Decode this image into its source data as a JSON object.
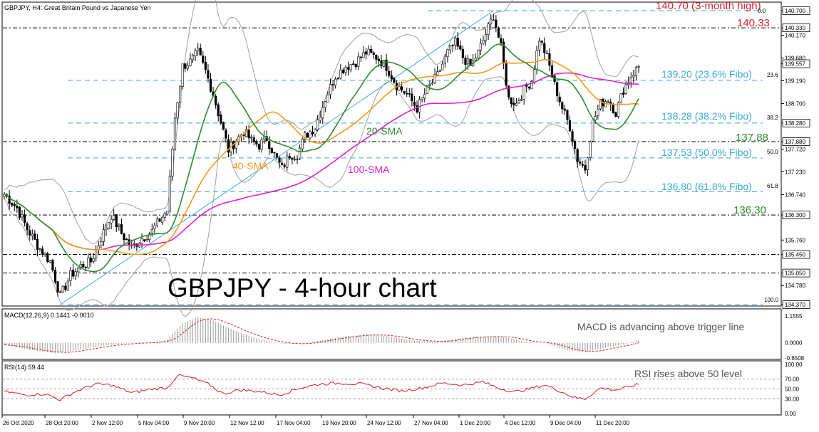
{
  "header": {
    "main_title": "GBPJPY, H4:  Great Britain Pound vs Japanese Yen",
    "macd_title": "MACD(12,26,9) 0.1441 -0.0010",
    "rsi_title": "RSI(14) 59.44"
  },
  "big_title": "GBPJPY - 4-hour chart",
  "colors": {
    "bull": "#ffffff",
    "bear": "#000000",
    "sma20": "#2e8b2e",
    "sma40": "#f59a1c",
    "sma100": "#e020d0",
    "bollinger": "#a0a0a0",
    "fibo": "#3aa9d6",
    "resistance": "#e0202a",
    "support": "#2e8b2e",
    "channel": "#3aa9d6",
    "macd_signal": "#d02020",
    "rsi_line": "#d02020",
    "annotation_text": "#555555"
  },
  "annotations": {
    "high_label": "140.70 (3-month high)",
    "r1_label": "140.33",
    "fibo_236": "139.20 (23.6% Fibo)",
    "fibo_382": "138.28 (38.2% Fibo)",
    "fibo_500": "137.53 (50.0% Fibo)",
    "fibo_618": "136.80 (61.8% Fibo)",
    "s1_label": "137.88",
    "s2_label": "136.30",
    "sma20_label": "20-SMA",
    "sma40_label": "40-SMA",
    "sma100_label": "100-SMA",
    "macd_note": "MACD is advancing above trigger line",
    "rsi_note": "RSI rises above 50 level",
    "fibo_small_236": "23.6",
    "fibo_small_382": "38.2",
    "fibo_small_500": "50.0",
    "fibo_small_618": "61.8",
    "fibo_small_0": "0.0",
    "fibo_small_100": "100.0"
  },
  "chart_data": [
    {
      "type": "candlestick",
      "title": "GBPJPY, H4:  Great Britain Pound vs Japanese Yen",
      "ylim": [
        134.37,
        140.7
      ],
      "y_tick_labels": [
        "140.700",
        "140.330",
        "140.170",
        "139.680",
        "139.557",
        "139.190",
        "138.700",
        "138.280",
        "137.880",
        "137.720",
        "137.230",
        "136.740",
        "136.300",
        "135.760",
        "135.450",
        "135.050",
        "134.780",
        "134.370"
      ],
      "x_tick_labels": [
        "26 Oct 2020",
        "28 Oct 20:00",
        "2 Nov 12:00",
        "5 Nov 04:00",
        "9 Nov 20:00",
        "12 Nov 12:00",
        "17 Nov 04:00",
        "19 Nov 20:00",
        "24 Nov 12:00",
        "27 Nov 04:00",
        "1 Dec 20:00",
        "4 Dec 12:00",
        "9 Dec 04:00",
        "11 Dec 20:00"
      ],
      "price_anchors": [
        [
          0,
          136.75
        ],
        [
          5,
          136.45
        ],
        [
          9,
          136.0
        ],
        [
          13,
          135.65
        ],
        [
          18,
          135.3
        ],
        [
          22,
          134.55
        ],
        [
          26,
          135.0
        ],
        [
          30,
          135.2
        ],
        [
          34,
          135.3
        ],
        [
          38,
          135.8
        ],
        [
          42,
          136.3
        ],
        [
          46,
          135.9
        ],
        [
          50,
          135.6
        ],
        [
          54,
          135.8
        ],
        [
          58,
          135.95
        ],
        [
          61,
          136.2
        ],
        [
          64,
          136.4
        ],
        [
          67,
          138.4
        ],
        [
          70,
          139.5
        ],
        [
          73,
          139.6
        ],
        [
          76,
          139.8
        ],
        [
          79,
          139.4
        ],
        [
          82,
          138.9
        ],
        [
          85,
          138.3
        ],
        [
          88,
          137.7
        ],
        [
          91,
          137.9
        ],
        [
          94,
          138.1
        ],
        [
          97,
          137.9
        ],
        [
          100,
          137.8
        ],
        [
          103,
          137.95
        ],
        [
          106,
          137.6
        ],
        [
          109,
          137.3
        ],
        [
          112,
          137.6
        ],
        [
          115,
          137.6
        ],
        [
          118,
          138.0
        ],
        [
          122,
          138.2
        ],
        [
          126,
          138.8
        ],
        [
          130,
          139.3
        ],
        [
          134,
          139.5
        ],
        [
          138,
          139.6
        ],
        [
          142,
          139.8
        ],
        [
          146,
          139.7
        ],
        [
          150,
          139.5
        ],
        [
          154,
          139.1
        ],
        [
          158,
          138.9
        ],
        [
          162,
          138.6
        ],
        [
          166,
          139.0
        ],
        [
          170,
          139.3
        ],
        [
          174,
          139.8
        ],
        [
          177,
          140.0
        ],
        [
          180,
          139.7
        ],
        [
          183,
          139.5
        ],
        [
          186,
          139.8
        ],
        [
          189,
          140.2
        ],
        [
          192,
          140.6
        ],
        [
          195,
          139.9
        ],
        [
          198,
          138.8
        ],
        [
          201,
          138.7
        ],
        [
          204,
          139.0
        ],
        [
          207,
          139.2
        ],
        [
          210,
          140.1
        ],
        [
          213,
          139.7
        ],
        [
          216,
          139.1
        ],
        [
          219,
          138.6
        ],
        [
          222,
          138.2
        ],
        [
          225,
          137.5
        ],
        [
          228,
          137.3
        ],
        [
          231,
          138.3
        ],
        [
          234,
          138.7
        ],
        [
          237,
          138.8
        ],
        [
          240,
          138.5
        ],
        [
          243,
          139.0
        ],
        [
          246,
          139.3
        ],
        [
          249,
          139.5
        ]
      ],
      "series": [
        {
          "name": "20-SMA"
        },
        {
          "name": "40-SMA"
        },
        {
          "name": "100-SMA"
        }
      ],
      "fibonacci": [
        {
          "level": "0.0",
          "price": 140.7
        },
        {
          "level": "23.6",
          "price": 139.2
        },
        {
          "level": "38.2",
          "price": 138.28
        },
        {
          "level": "50.0",
          "price": 137.53
        },
        {
          "level": "61.8",
          "price": 136.8
        },
        {
          "level": "100.0",
          "price": 134.37
        }
      ],
      "horizontal_levels": [
        140.33,
        137.88,
        136.3,
        135.45,
        135.05
      ],
      "grid": false
    },
    {
      "type": "histogram+line",
      "title": "MACD(12,26,9) 0.1441 -0.0010",
      "ylim": [
        -0.6508,
        1.1555
      ],
      "y_tick_labels": [
        "1.1555",
        "0.0000",
        "-0.6508"
      ],
      "macd_anchors": [
        [
          0,
          -0.08
        ],
        [
          10,
          -0.3
        ],
        [
          20,
          -0.44
        ],
        [
          28,
          -0.32
        ],
        [
          38,
          -0.12
        ],
        [
          48,
          -0.02
        ],
        [
          58,
          0.02
        ],
        [
          64,
          0.15
        ],
        [
          70,
          0.85
        ],
        [
          76,
          1.1
        ],
        [
          82,
          0.95
        ],
        [
          90,
          0.55
        ],
        [
          100,
          0.15
        ],
        [
          110,
          -0.05
        ],
        [
          118,
          -0.02
        ],
        [
          126,
          0.15
        ],
        [
          134,
          0.28
        ],
        [
          142,
          0.36
        ],
        [
          150,
          0.3
        ],
        [
          160,
          0.1
        ],
        [
          170,
          0.05
        ],
        [
          180,
          0.22
        ],
        [
          190,
          0.28
        ],
        [
          196,
          0.25
        ],
        [
          204,
          0.05
        ],
        [
          212,
          0.0
        ],
        [
          220,
          -0.3
        ],
        [
          228,
          -0.4
        ],
        [
          236,
          -0.2
        ],
        [
          244,
          -0.05
        ],
        [
          249,
          0.14
        ]
      ]
    },
    {
      "type": "line",
      "title": "RSI(14) 59.44",
      "ylim": [
        0,
        100
      ],
      "y_tick_labels": [
        "100.00",
        "70.00",
        "50.00",
        "30.00",
        "0.00"
      ],
      "rsi_anchors": [
        [
          0,
          45
        ],
        [
          8,
          38
        ],
        [
          16,
          40
        ],
        [
          22,
          28
        ],
        [
          28,
          45
        ],
        [
          36,
          60
        ],
        [
          42,
          58
        ],
        [
          50,
          42
        ],
        [
          58,
          50
        ],
        [
          64,
          52
        ],
        [
          68,
          78
        ],
        [
          74,
          72
        ],
        [
          80,
          60
        ],
        [
          86,
          40
        ],
        [
          92,
          48
        ],
        [
          100,
          45
        ],
        [
          108,
          38
        ],
        [
          116,
          52
        ],
        [
          124,
          60
        ],
        [
          132,
          62
        ],
        [
          140,
          60
        ],
        [
          148,
          52
        ],
        [
          156,
          46
        ],
        [
          164,
          52
        ],
        [
          172,
          62
        ],
        [
          180,
          58
        ],
        [
          188,
          64
        ],
        [
          194,
          52
        ],
        [
          200,
          44
        ],
        [
          206,
          50
        ],
        [
          212,
          58
        ],
        [
          218,
          46
        ],
        [
          224,
          32
        ],
        [
          228,
          30
        ],
        [
          234,
          52
        ],
        [
          240,
          48
        ],
        [
          246,
          55
        ],
        [
          249,
          59.44
        ]
      ]
    }
  ]
}
